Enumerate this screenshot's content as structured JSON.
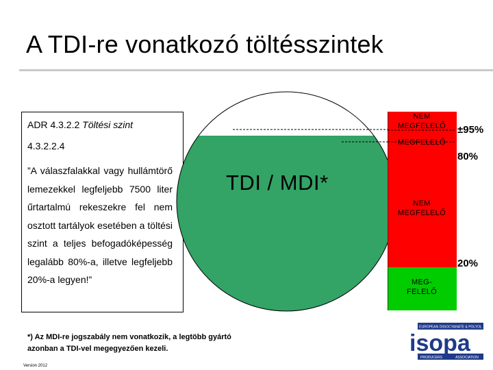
{
  "title": "A TDI-re vonatkozó töltésszintek",
  "textbox": {
    "adr_prefix": "ADR 4.3.2.2 ",
    "adr_italic": "Töltési szint",
    "section": "4.3.2.2.4",
    "quote": "”A válaszfalakkal vagy hullámtörő lemezekkel legfeljebb 7500 liter űrtartalmú rekeszekre fel nem osztott tartályok esetében a töltési szint a teljes befogadóképesség legalább 80%-a, illetve legfeljebb 20%-a legyen!”"
  },
  "tank": {
    "label": "TDI / MDI*",
    "fill_fraction": 0.8
  },
  "zones": {
    "top": "NEM\nMEGFELELŐ",
    "upper": "MEGFELELŐ",
    "middle": "NEM\nMEGFELELŐ",
    "lower": "MEG-\nFELELŐ"
  },
  "levels": {
    "p95": "±95%",
    "p80": "80%",
    "p20": "20%"
  },
  "footnote": {
    "line1": "*) Az MDI-re jogszabály nem vonatkozik, a legtöbb gyártó",
    "line2": "azonban a TDI-vel megegyezően kezeli."
  },
  "version": "Version 2012",
  "logo": {
    "text": "isopa",
    "top_line": "EUROPEAN DIISOCYANATE & POLYOL",
    "bottom_left": "PRODUCERS",
    "bottom_right": "ASSOCIATION"
  },
  "colors": {
    "tank_fill": "#33a366",
    "red_zone": "#ff0000",
    "green_zone": "#00cc00"
  }
}
